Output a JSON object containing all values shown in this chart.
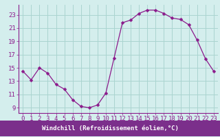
{
  "x": [
    0,
    1,
    2,
    3,
    4,
    5,
    6,
    7,
    8,
    9,
    10,
    11,
    12,
    13,
    14,
    15,
    16,
    17,
    18,
    19,
    20,
    21,
    22,
    23
  ],
  "y": [
    14.5,
    13.2,
    15.0,
    14.2,
    12.5,
    11.8,
    10.2,
    9.2,
    9.0,
    9.4,
    11.2,
    16.5,
    21.8,
    22.2,
    23.2,
    23.7,
    23.7,
    23.2,
    22.5,
    22.3,
    21.5,
    19.2,
    16.4,
    14.5
  ],
  "line_color": "#8b1a8b",
  "marker": "D",
  "marker_size": 2.5,
  "bg_color": "#d4eeed",
  "grid_color": "#aad4d0",
  "xlabel": "Windchill (Refroidissement éolien,°C)",
  "xlabel_bg": "#7b2f8b",
  "xlabel_color": "#ffffff",
  "yticks": [
    9,
    11,
    13,
    15,
    17,
    19,
    21,
    23
  ],
  "xticks": [
    0,
    1,
    2,
    3,
    4,
    5,
    6,
    7,
    8,
    9,
    10,
    11,
    12,
    13,
    14,
    15,
    16,
    17,
    18,
    19,
    20,
    21,
    22,
    23
  ],
  "xlim": [
    -0.5,
    23.5
  ],
  "ylim": [
    8.2,
    24.5
  ],
  "axis_label_fontsize": 6.5,
  "tick_fontsize": 6.5,
  "tick_color": "#8b1a8b",
  "bottom_bar_color": "#8b1a8b"
}
